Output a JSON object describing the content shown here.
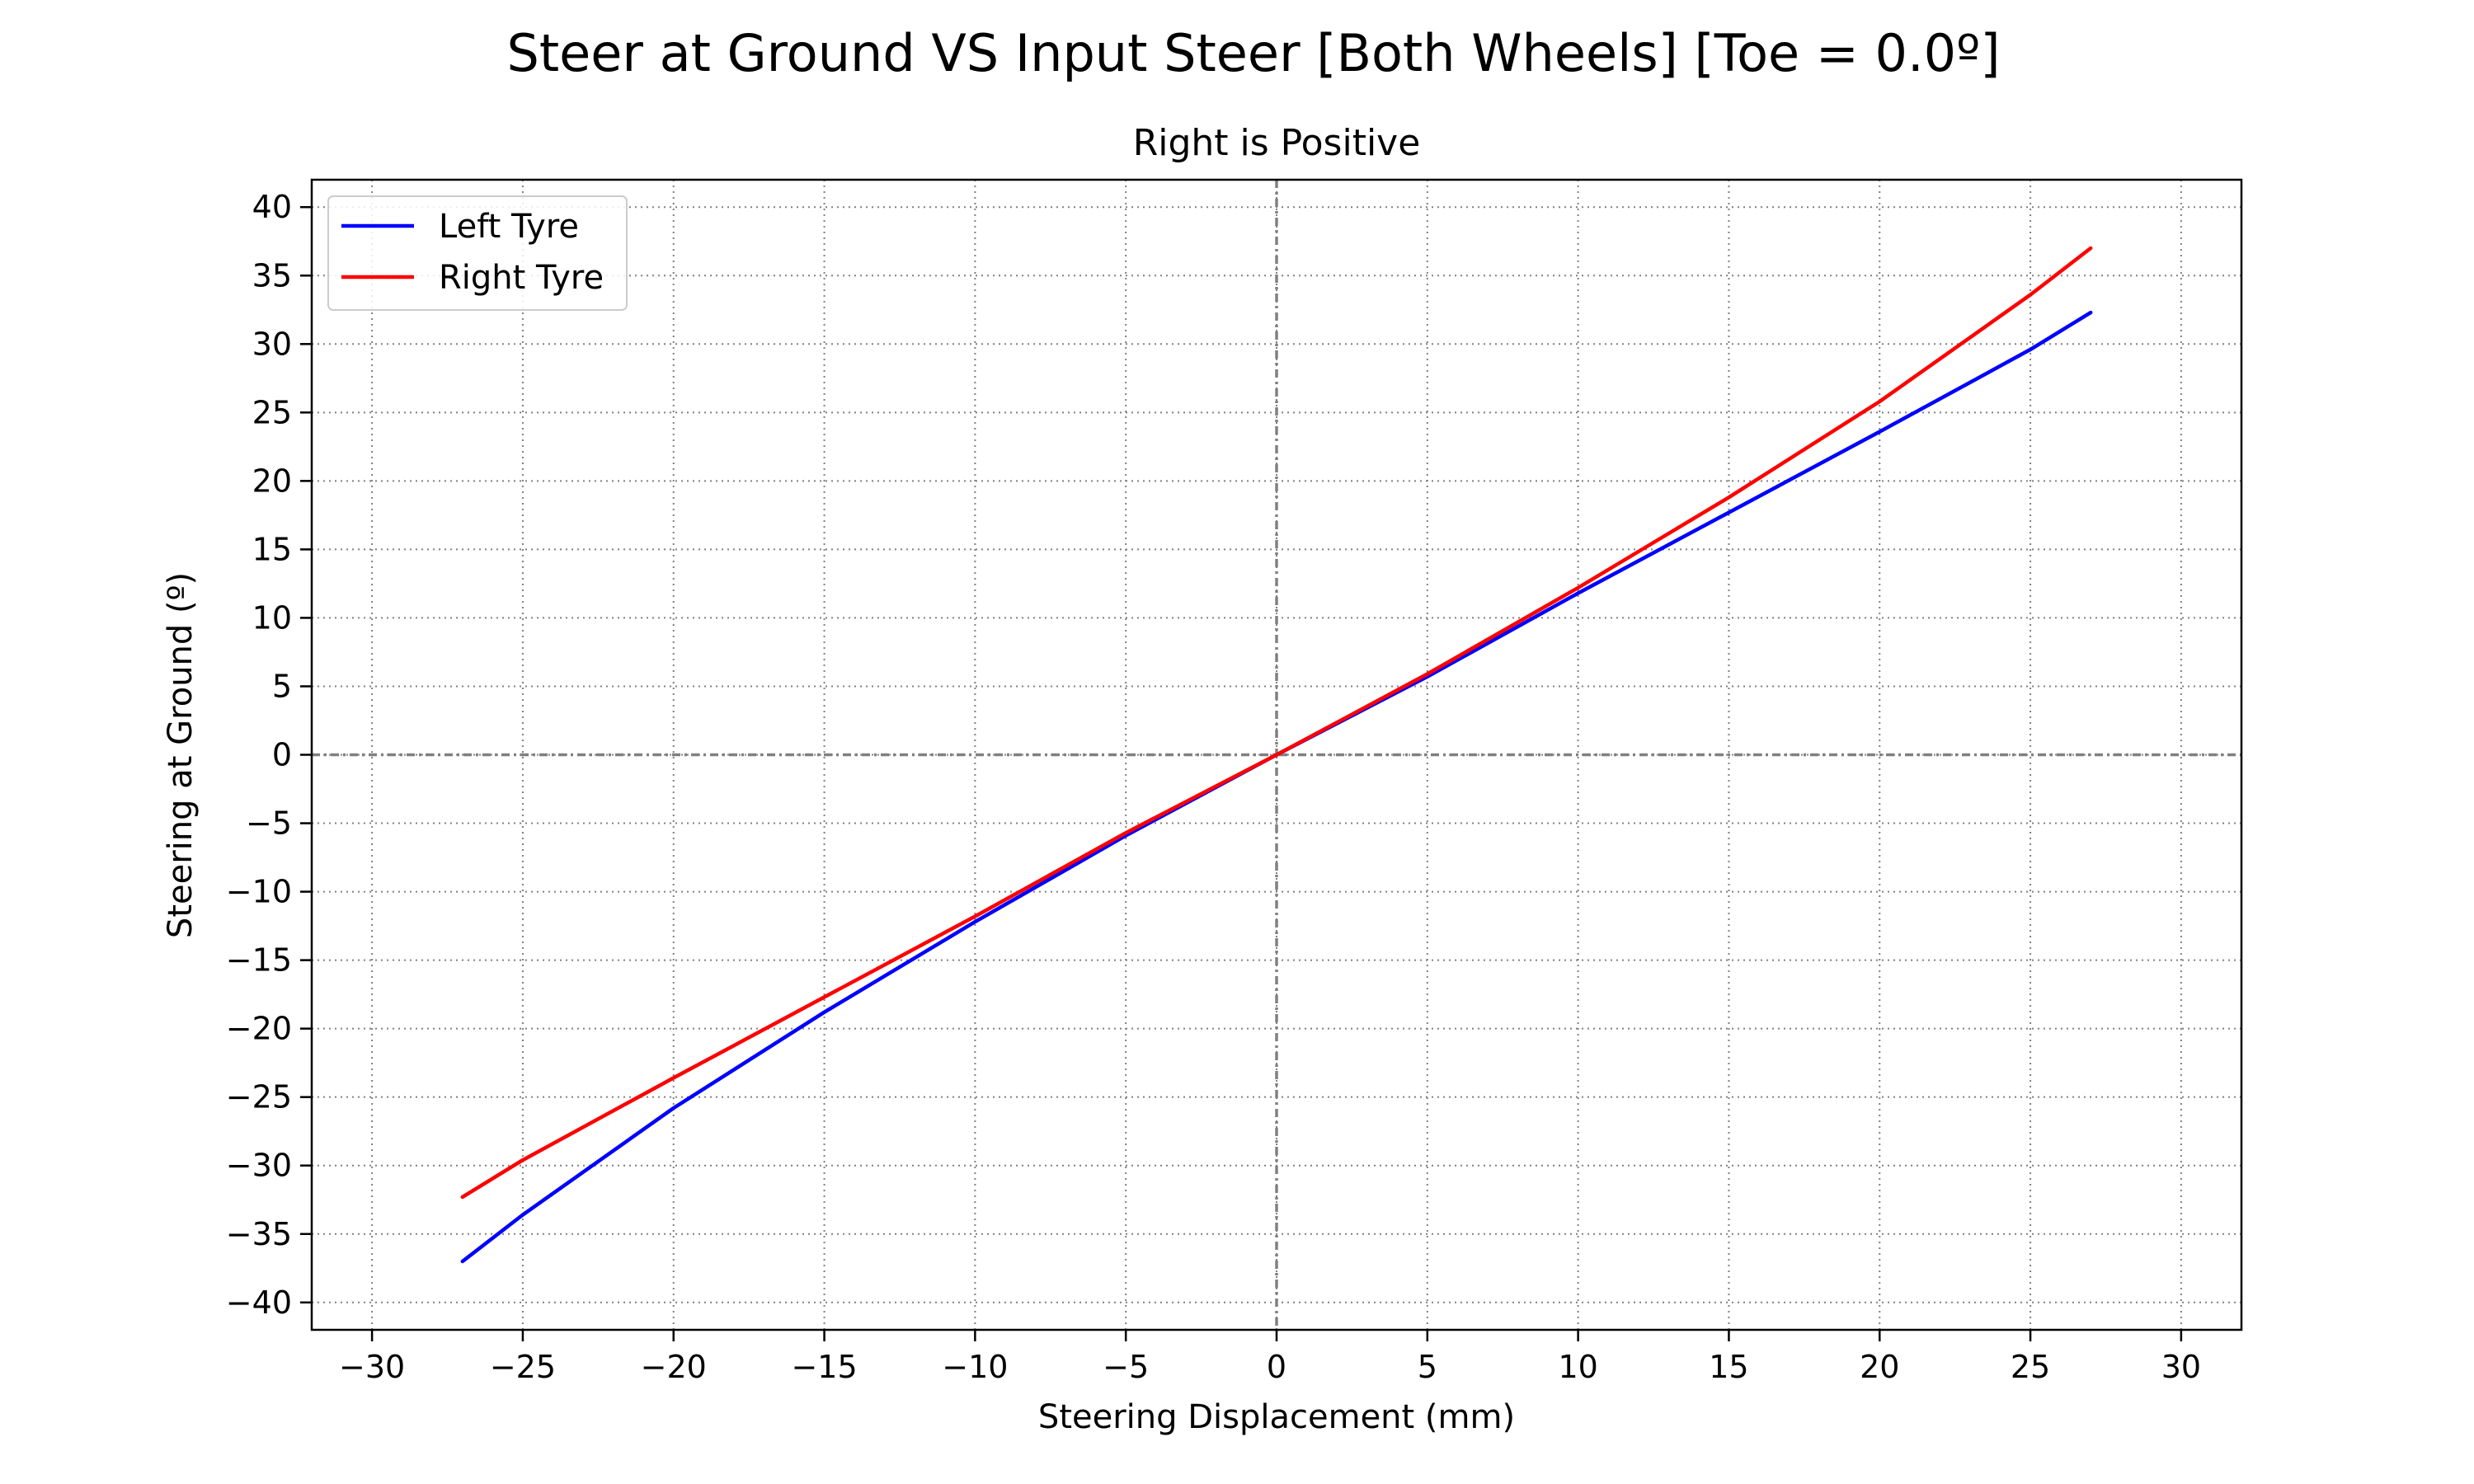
{
  "chart_data": {
    "type": "line",
    "title": "Steer at Ground VS Input Steer [Both Wheels] [Toe = 0.0º]",
    "subtitle": "Right is Positive",
    "xlabel": "Steering Displacement (mm)",
    "ylabel": "Steering at Ground (º)",
    "xlim": [
      -32,
      32
    ],
    "ylim": [
      -42,
      42
    ],
    "xticks": [
      -30,
      -25,
      -20,
      -15,
      -10,
      -5,
      0,
      5,
      10,
      15,
      20,
      25,
      30
    ],
    "yticks": [
      -40,
      -35,
      -30,
      -25,
      -20,
      -15,
      -10,
      -5,
      0,
      5,
      10,
      15,
      20,
      25,
      30,
      35,
      40
    ],
    "grid": true,
    "grid_style": "dotted",
    "zero_lines": true,
    "legend_position": "top-left",
    "series": [
      {
        "name": "Left Tyre",
        "color": "#0000ff",
        "x": [
          -27,
          -25,
          -20,
          -15,
          -10,
          -5,
          0,
          5,
          10,
          15,
          20,
          25,
          27
        ],
        "y": [
          -37.0,
          -33.6,
          -25.8,
          -18.8,
          -12.2,
          -5.9,
          0,
          5.7,
          11.8,
          17.7,
          23.6,
          29.6,
          32.3
        ]
      },
      {
        "name": "Right Tyre",
        "color": "#ff0000",
        "x": [
          -27,
          -25,
          -20,
          -15,
          -10,
          -5,
          0,
          5,
          10,
          15,
          20,
          25,
          27
        ],
        "y": [
          -32.3,
          -29.6,
          -23.6,
          -17.7,
          -11.8,
          -5.7,
          0,
          5.9,
          12.2,
          18.8,
          25.8,
          33.6,
          37.0
        ]
      }
    ]
  }
}
